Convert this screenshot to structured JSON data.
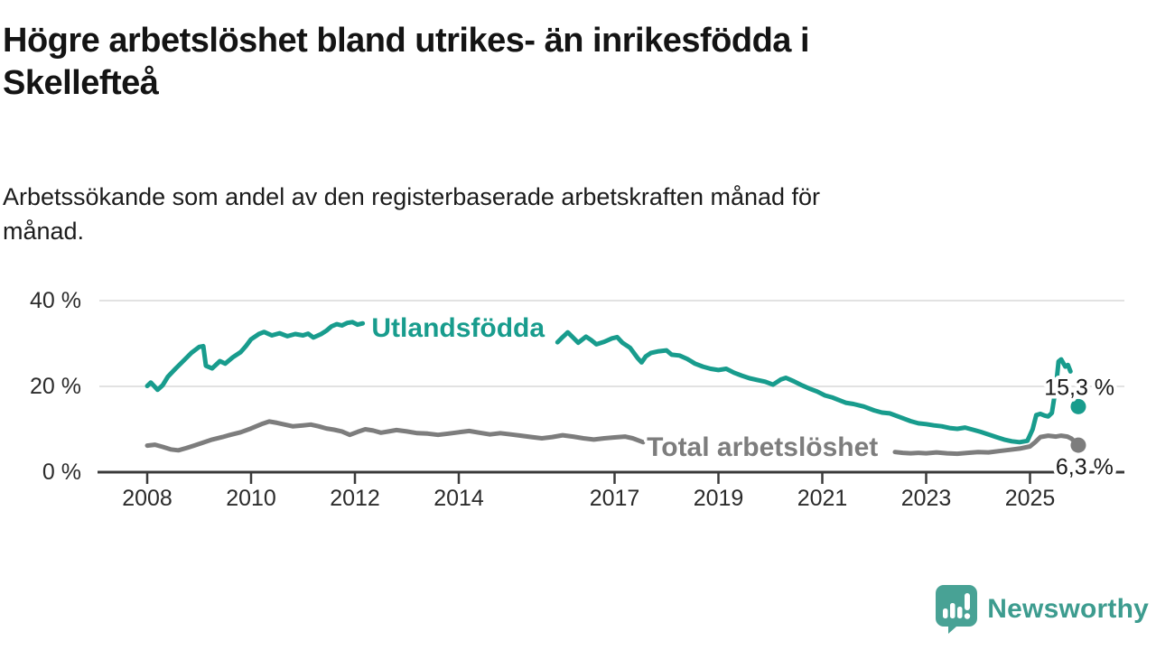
{
  "header": {
    "title_line1": "Högre arbetslöshet bland utrikes- än inrikesfödda i",
    "title_line2": "Skellefteå",
    "subtitle_line1": "Arbetssökande som andel av den registerbaserade arbetskraften månad för",
    "subtitle_line2": "månad."
  },
  "chart_data": {
    "type": "line",
    "title": "Högre arbetslöshet bland utrikes- än inrikesfödda i Skellefteå",
    "subtitle": "Arbetssökande som andel av den registerbaserade arbetskraften månad för månad.",
    "unit": "%",
    "legend_position": "inline-labels-on-lines",
    "grid": true,
    "x_axis": {
      "ticks": [
        2008,
        2010,
        2012,
        2014,
        2017,
        2019,
        2021,
        2023,
        2025
      ],
      "range": [
        2007.1,
        2026.8
      ]
    },
    "y_axis": {
      "ticks": [
        {
          "value": 0,
          "label": "0 %"
        },
        {
          "value": 20,
          "label": "20 %"
        },
        {
          "value": 40,
          "label": "40 %"
        }
      ],
      "gridlines": [
        20,
        40
      ],
      "range": [
        0,
        43
      ]
    },
    "series": [
      {
        "name": "Utlandsfödda",
        "color": "#189c8d",
        "label_pos": {
          "x": 2012.32,
          "y": 31.6
        },
        "last_point": {
          "x": 2025.93,
          "y": 15.3,
          "label": "15,3 %",
          "label_anchor": {
            "x": 2025.95,
            "y": 18.0
          },
          "connected": false
        },
        "segments": [
          [
            [
              2008.0,
              20.1
            ],
            [
              2008.07,
              20.9
            ],
            [
              2008.2,
              19.2
            ],
            [
              2008.3,
              20.3
            ],
            [
              2008.4,
              22.3
            ],
            [
              2008.55,
              24.2
            ],
            [
              2008.7,
              26.0
            ],
            [
              2008.85,
              27.8
            ],
            [
              2009.0,
              29.2
            ],
            [
              2009.08,
              29.4
            ],
            [
              2009.13,
              24.8
            ],
            [
              2009.25,
              24.2
            ],
            [
              2009.4,
              25.9
            ],
            [
              2009.5,
              25.3
            ],
            [
              2009.65,
              26.8
            ],
            [
              2009.8,
              28.0
            ],
            [
              2009.9,
              29.4
            ],
            [
              2010.0,
              31.0
            ],
            [
              2010.15,
              32.2
            ],
            [
              2010.25,
              32.7
            ],
            [
              2010.4,
              31.9
            ],
            [
              2010.55,
              32.4
            ],
            [
              2010.7,
              31.7
            ],
            [
              2010.85,
              32.2
            ],
            [
              2011.0,
              31.9
            ],
            [
              2011.1,
              32.3
            ],
            [
              2011.2,
              31.4
            ],
            [
              2011.35,
              32.2
            ],
            [
              2011.45,
              33.0
            ],
            [
              2011.55,
              34.0
            ],
            [
              2011.65,
              34.5
            ],
            [
              2011.75,
              34.2
            ],
            [
              2011.85,
              34.8
            ],
            [
              2011.95,
              35.0
            ],
            [
              2012.05,
              34.4
            ],
            [
              2012.15,
              34.7
            ]
          ],
          [
            [
              2015.9,
              30.3
            ],
            [
              2016.0,
              31.5
            ],
            [
              2016.1,
              32.6
            ],
            [
              2016.2,
              31.4
            ],
            [
              2016.3,
              30.2
            ],
            [
              2016.45,
              31.6
            ],
            [
              2016.55,
              30.8
            ],
            [
              2016.65,
              29.8
            ],
            [
              2016.8,
              30.4
            ],
            [
              2016.95,
              31.2
            ],
            [
              2017.05,
              31.5
            ],
            [
              2017.15,
              30.2
            ],
            [
              2017.3,
              29.0
            ],
            [
              2017.45,
              26.5
            ],
            [
              2017.52,
              25.6
            ],
            [
              2017.6,
              27.0
            ],
            [
              2017.7,
              27.8
            ],
            [
              2017.85,
              28.2
            ],
            [
              2018.0,
              28.4
            ],
            [
              2018.1,
              27.4
            ],
            [
              2018.25,
              27.2
            ],
            [
              2018.4,
              26.4
            ],
            [
              2018.55,
              25.3
            ],
            [
              2018.7,
              24.6
            ],
            [
              2018.85,
              24.1
            ],
            [
              2019.0,
              23.8
            ],
            [
              2019.15,
              24.1
            ],
            [
              2019.3,
              23.2
            ],
            [
              2019.45,
              22.5
            ],
            [
              2019.6,
              21.9
            ],
            [
              2019.75,
              21.5
            ],
            [
              2019.9,
              21.1
            ],
            [
              2020.05,
              20.4
            ],
            [
              2020.2,
              21.6
            ],
            [
              2020.3,
              22.0
            ],
            [
              2020.45,
              21.2
            ],
            [
              2020.6,
              20.3
            ],
            [
              2020.75,
              19.5
            ],
            [
              2020.9,
              18.8
            ],
            [
              2021.05,
              17.9
            ],
            [
              2021.2,
              17.4
            ],
            [
              2021.3,
              16.9
            ],
            [
              2021.45,
              16.2
            ],
            [
              2021.6,
              15.9
            ],
            [
              2021.8,
              15.3
            ],
            [
              2022.0,
              14.4
            ],
            [
              2022.15,
              13.9
            ],
            [
              2022.3,
              13.7
            ],
            [
              2022.5,
              12.8
            ],
            [
              2022.7,
              11.9
            ],
            [
              2022.85,
              11.4
            ],
            [
              2023.0,
              11.2
            ],
            [
              2023.15,
              10.9
            ],
            [
              2023.3,
              10.7
            ],
            [
              2023.45,
              10.3
            ],
            [
              2023.6,
              10.1
            ],
            [
              2023.75,
              10.4
            ],
            [
              2023.9,
              9.9
            ],
            [
              2024.05,
              9.4
            ],
            [
              2024.2,
              8.8
            ],
            [
              2024.35,
              8.2
            ],
            [
              2024.5,
              7.6
            ],
            [
              2024.65,
              7.2
            ],
            [
              2024.8,
              7.0
            ],
            [
              2024.95,
              7.3
            ],
            [
              2025.05,
              10.0
            ],
            [
              2025.12,
              13.3
            ],
            [
              2025.2,
              13.6
            ],
            [
              2025.28,
              13.2
            ],
            [
              2025.35,
              13.0
            ],
            [
              2025.42,
              13.8
            ],
            [
              2025.5,
              20.0
            ],
            [
              2025.55,
              25.8
            ],
            [
              2025.6,
              26.3
            ],
            [
              2025.68,
              24.6
            ],
            [
              2025.73,
              25.0
            ],
            [
              2025.78,
              23.5
            ]
          ]
        ]
      },
      {
        "name": "Total arbetslöshet",
        "color": "#7d7d7d",
        "label_pos": {
          "x": 2017.62,
          "y": 3.8
        },
        "last_point": {
          "x": 2025.93,
          "y": 6.3,
          "label": "6,3 %",
          "label_anchor": {
            "x": 2026.05,
            "y": -0.5
          },
          "connected": true
        },
        "segments": [
          [
            [
              2008.0,
              6.2
            ],
            [
              2008.15,
              6.4
            ],
            [
              2008.3,
              5.9
            ],
            [
              2008.45,
              5.3
            ],
            [
              2008.6,
              5.1
            ],
            [
              2008.75,
              5.6
            ],
            [
              2008.9,
              6.2
            ],
            [
              2009.05,
              6.8
            ],
            [
              2009.25,
              7.6
            ],
            [
              2009.45,
              8.2
            ],
            [
              2009.6,
              8.7
            ],
            [
              2009.8,
              9.3
            ],
            [
              2010.0,
              10.2
            ],
            [
              2010.2,
              11.2
            ],
            [
              2010.35,
              11.8
            ],
            [
              2010.5,
              11.5
            ],
            [
              2010.65,
              11.1
            ],
            [
              2010.8,
              10.7
            ],
            [
              2011.0,
              10.9
            ],
            [
              2011.15,
              11.1
            ],
            [
              2011.3,
              10.7
            ],
            [
              2011.45,
              10.2
            ],
            [
              2011.6,
              9.9
            ],
            [
              2011.75,
              9.5
            ],
            [
              2011.9,
              8.7
            ],
            [
              2012.05,
              9.4
            ],
            [
              2012.2,
              10.0
            ],
            [
              2012.35,
              9.7
            ],
            [
              2012.5,
              9.2
            ],
            [
              2012.65,
              9.5
            ],
            [
              2012.8,
              9.8
            ],
            [
              2013.0,
              9.5
            ],
            [
              2013.2,
              9.1
            ],
            [
              2013.4,
              9.0
            ],
            [
              2013.6,
              8.7
            ],
            [
              2013.8,
              9.0
            ],
            [
              2014.0,
              9.3
            ],
            [
              2014.2,
              9.6
            ],
            [
              2014.4,
              9.2
            ],
            [
              2014.6,
              8.8
            ],
            [
              2014.8,
              9.1
            ],
            [
              2015.0,
              8.8
            ],
            [
              2015.2,
              8.5
            ],
            [
              2015.4,
              8.2
            ],
            [
              2015.6,
              7.9
            ],
            [
              2015.8,
              8.2
            ],
            [
              2016.0,
              8.6
            ],
            [
              2016.2,
              8.3
            ],
            [
              2016.4,
              7.9
            ],
            [
              2016.6,
              7.6
            ],
            [
              2016.8,
              7.9
            ],
            [
              2017.0,
              8.1
            ],
            [
              2017.2,
              8.3
            ],
            [
              2017.35,
              7.9
            ],
            [
              2017.55,
              7.0
            ]
          ],
          [
            [
              2022.4,
              4.7
            ],
            [
              2022.55,
              4.5
            ],
            [
              2022.7,
              4.4
            ],
            [
              2022.85,
              4.5
            ],
            [
              2023.0,
              4.4
            ],
            [
              2023.2,
              4.6
            ],
            [
              2023.4,
              4.4
            ],
            [
              2023.6,
              4.3
            ],
            [
              2023.8,
              4.5
            ],
            [
              2024.0,
              4.7
            ],
            [
              2024.2,
              4.6
            ],
            [
              2024.4,
              4.9
            ],
            [
              2024.6,
              5.2
            ],
            [
              2024.8,
              5.5
            ],
            [
              2025.0,
              6.0
            ],
            [
              2025.1,
              7.0
            ],
            [
              2025.2,
              8.2
            ],
            [
              2025.35,
              8.5
            ],
            [
              2025.5,
              8.3
            ],
            [
              2025.6,
              8.5
            ],
            [
              2025.72,
              8.3
            ],
            [
              2025.8,
              7.8
            ],
            [
              2025.87,
              7.0
            ],
            [
              2025.93,
              6.3
            ]
          ]
        ]
      }
    ],
    "colors": {
      "grid": "#d9d9d9",
      "axis": "#3a3a3a",
      "axis_text": "#2b2b2b",
      "end_label_text": "#1a1a1a",
      "background": "#ffffff"
    }
  },
  "footer": {
    "brand": "Newsworthy",
    "brand_color": "#3d9c8f",
    "logo_bubble_color": "#48a295"
  }
}
